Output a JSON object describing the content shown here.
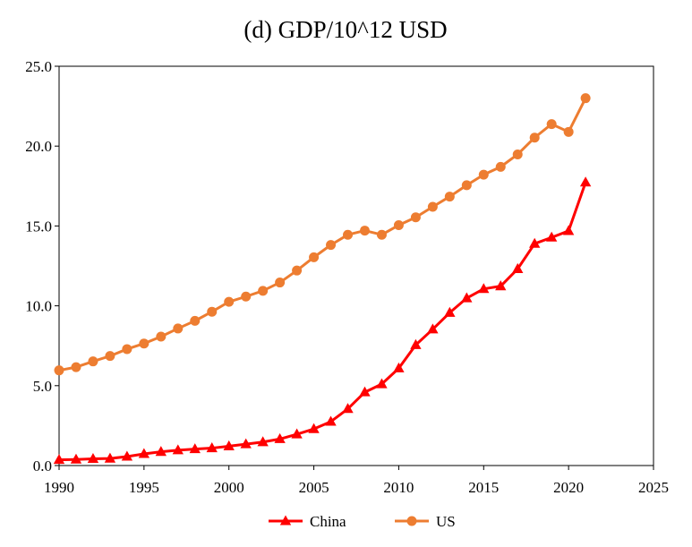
{
  "chart_data": {
    "type": "line",
    "title": "(d) GDP/10^12  USD",
    "xlabel": "",
    "ylabel": "",
    "xlim": [
      1990,
      2025
    ],
    "ylim": [
      0,
      25
    ],
    "x_ticks": [
      1990,
      1995,
      2000,
      2005,
      2010,
      2015,
      2020,
      2025
    ],
    "x_tick_labels": [
      "1990",
      "1995",
      "2000",
      "2005",
      "2010",
      "2015",
      "2020",
      "2025"
    ],
    "y_ticks": [
      0,
      5,
      10,
      15,
      20,
      25
    ],
    "y_tick_labels": [
      "0.0",
      "5.0",
      "10.0",
      "15.0",
      "20.0",
      "25.0"
    ],
    "grid": false,
    "legend_position": "bottom-center",
    "x": [
      1990,
      1991,
      1992,
      1993,
      1994,
      1995,
      1996,
      1997,
      1998,
      1999,
      2000,
      2001,
      2002,
      2003,
      2004,
      2005,
      2006,
      2007,
      2008,
      2009,
      2010,
      2011,
      2012,
      2013,
      2014,
      2015,
      2016,
      2017,
      2018,
      2019,
      2020,
      2021
    ],
    "series": [
      {
        "name": "China",
        "color": "#ff0000",
        "marker": "triangle",
        "values": [
          0.36,
          0.38,
          0.42,
          0.44,
          0.56,
          0.73,
          0.86,
          0.96,
          1.03,
          1.09,
          1.21,
          1.34,
          1.47,
          1.66,
          1.96,
          2.29,
          2.75,
          3.55,
          4.59,
          5.1,
          6.09,
          7.55,
          8.53,
          9.57,
          10.48,
          11.06,
          11.23,
          12.31,
          13.89,
          14.28,
          14.69,
          17.73
        ]
      },
      {
        "name": "US",
        "color": "#ed7d31",
        "marker": "circle",
        "values": [
          5.96,
          6.16,
          6.52,
          6.86,
          7.29,
          7.64,
          8.07,
          8.58,
          9.06,
          9.63,
          10.25,
          10.58,
          10.94,
          11.46,
          12.21,
          13.04,
          13.81,
          14.45,
          14.71,
          14.45,
          15.05,
          15.54,
          16.2,
          16.84,
          17.55,
          18.21,
          18.7,
          19.48,
          20.53,
          21.38,
          20.89,
          23.0
        ]
      }
    ]
  }
}
